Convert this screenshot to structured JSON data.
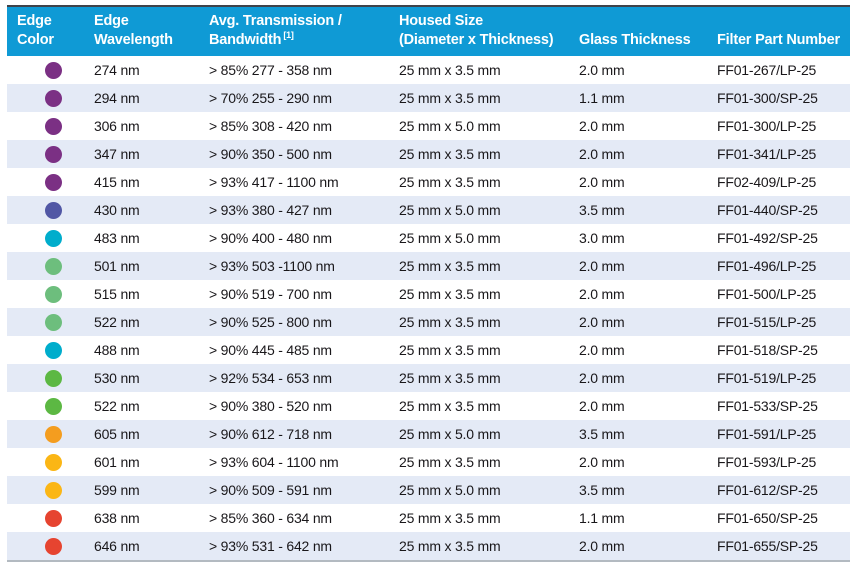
{
  "table": {
    "colors": {
      "header_bg": "#0f9ad5",
      "stripe": "#e4eaf6",
      "text": "#19171a",
      "top_border": "#3f434a",
      "bottom_border": "#b3bac1"
    },
    "columns": [
      {
        "line1": "Edge",
        "line2": "Color"
      },
      {
        "line1": "Edge",
        "line2": "Wavelength"
      },
      {
        "line1": "Avg. Transmission /",
        "line2": "Bandwidth",
        "sup": "[1]"
      },
      {
        "line1": "Housed Size",
        "line2": "(Diameter x Thickness)"
      },
      {
        "line1": "Glass Thickness",
        "line2": ""
      },
      {
        "line1": "Filter Part Number",
        "line2": ""
      }
    ],
    "rows": [
      {
        "dot_color_name": "purple",
        "dot": "#7b3084",
        "wavelength": "274 nm",
        "transmission": "> 85% 277 - 358 nm",
        "housed_size": "25 mm x 3.5 mm",
        "glass_thickness": "2.0 mm",
        "part_number": "FF01-267/LP-25"
      },
      {
        "dot_color_name": "purple",
        "dot": "#7b3084",
        "wavelength": "294 nm",
        "transmission": "> 70% 255 - 290 nm",
        "housed_size": "25 mm x 3.5 mm",
        "glass_thickness": "1.1 mm",
        "part_number": "FF01-300/SP-25"
      },
      {
        "dot_color_name": "purple",
        "dot": "#7b3084",
        "wavelength": "306 nm",
        "transmission": "> 85% 308 - 420 nm",
        "housed_size": "25 mm x 5.0 mm",
        "glass_thickness": "2.0 mm",
        "part_number": "FF01-300/LP-25"
      },
      {
        "dot_color_name": "purple",
        "dot": "#7b3084",
        "wavelength": "347 nm",
        "transmission": "> 90% 350 - 500 nm",
        "housed_size": "25 mm x 3.5 mm",
        "glass_thickness": "2.0 mm",
        "part_number": "FF01-341/LP-25"
      },
      {
        "dot_color_name": "purple",
        "dot": "#7b3084",
        "wavelength": "415 nm",
        "transmission": "> 93% 417 - 1100 nm",
        "housed_size": "25 mm x 3.5 mm",
        "glass_thickness": "2.0 mm",
        "part_number": "FF02-409/LP-25"
      },
      {
        "dot_color_name": "indigo",
        "dot": "#5157a5",
        "wavelength": "430 nm",
        "transmission": "> 93% 380 - 427 nm",
        "housed_size": "25 mm x 5.0 mm",
        "glass_thickness": "3.5 mm",
        "part_number": "FF01-440/SP-25"
      },
      {
        "dot_color_name": "cyan",
        "dot": "#00adcc",
        "wavelength": "483 nm",
        "transmission": "> 90% 400 - 480 nm",
        "housed_size": "25 mm x 5.0 mm",
        "glass_thickness": "3.0 mm",
        "part_number": "FF01-492/SP-25"
      },
      {
        "dot_color_name": "soft-green",
        "dot": "#6dbe7d",
        "wavelength": "501 nm",
        "transmission": "> 93% 503 -1100 nm",
        "housed_size": "25 mm x 3.5 mm",
        "glass_thickness": "2.0 mm",
        "part_number": "FF01-496/LP-25"
      },
      {
        "dot_color_name": "soft-green",
        "dot": "#6dbe7d",
        "wavelength": "515 nm",
        "transmission": "> 90% 519 - 700 nm",
        "housed_size": "25 mm x 3.5 mm",
        "glass_thickness": "2.0 mm",
        "part_number": "FF01-500/LP-25"
      },
      {
        "dot_color_name": "soft-green",
        "dot": "#6dbe7d",
        "wavelength": "522 nm",
        "transmission": "> 90% 525 - 800 nm",
        "housed_size": "25 mm x 3.5 mm",
        "glass_thickness": "2.0 mm",
        "part_number": "FF01-515/LP-25"
      },
      {
        "dot_color_name": "cyan",
        "dot": "#00adcc",
        "wavelength": "488 nm",
        "transmission": "> 90% 445 - 485 nm",
        "housed_size": "25 mm x 3.5 mm",
        "glass_thickness": "2.0 mm",
        "part_number": "FF01-518/SP-25"
      },
      {
        "dot_color_name": "green",
        "dot": "#5cb843",
        "wavelength": "530 nm",
        "transmission": "> 92% 534 - 653 nm",
        "housed_size": "25 mm x 3.5 mm",
        "glass_thickness": "2.0 mm",
        "part_number": "FF01-519/LP-25"
      },
      {
        "dot_color_name": "green",
        "dot": "#5cb843",
        "wavelength": "522 nm",
        "transmission": "> 90% 380 - 520 nm",
        "housed_size": "25 mm x 3.5 mm",
        "glass_thickness": "2.0 mm",
        "part_number": "FF01-533/SP-25"
      },
      {
        "dot_color_name": "orange",
        "dot": "#f49d1f",
        "wavelength": "605 nm",
        "transmission": "> 90% 612 - 718 nm",
        "housed_size": "25 mm x 5.0 mm",
        "glass_thickness": "3.5 mm",
        "part_number": "FF01-591/LP-25"
      },
      {
        "dot_color_name": "amber",
        "dot": "#fbb615",
        "wavelength": "601 nm",
        "transmission": "> 93% 604 - 1100 nm",
        "housed_size": "25 mm x 3.5 mm",
        "glass_thickness": "2.0 mm",
        "part_number": "FF01-593/LP-25"
      },
      {
        "dot_color_name": "amber",
        "dot": "#fbb615",
        "wavelength": "599 nm",
        "transmission": "> 90% 509 - 591 nm",
        "housed_size": "25 mm x 5.0 mm",
        "glass_thickness": "3.5 mm",
        "part_number": "FF01-612/SP-25"
      },
      {
        "dot_color_name": "red",
        "dot": "#e64430",
        "wavelength": "638 nm",
        "transmission": "> 85% 360 - 634 nm",
        "housed_size": "25 mm x 3.5 mm",
        "glass_thickness": "1.1 mm",
        "part_number": "FF01-650/SP-25"
      },
      {
        "dot_color_name": "red",
        "dot": "#e64430",
        "wavelength": "646 nm",
        "transmission": "> 93% 531 - 642 nm",
        "housed_size": "25 mm x 3.5 mm",
        "glass_thickness": "2.0 mm",
        "part_number": "FF01-655/SP-25"
      }
    ]
  }
}
